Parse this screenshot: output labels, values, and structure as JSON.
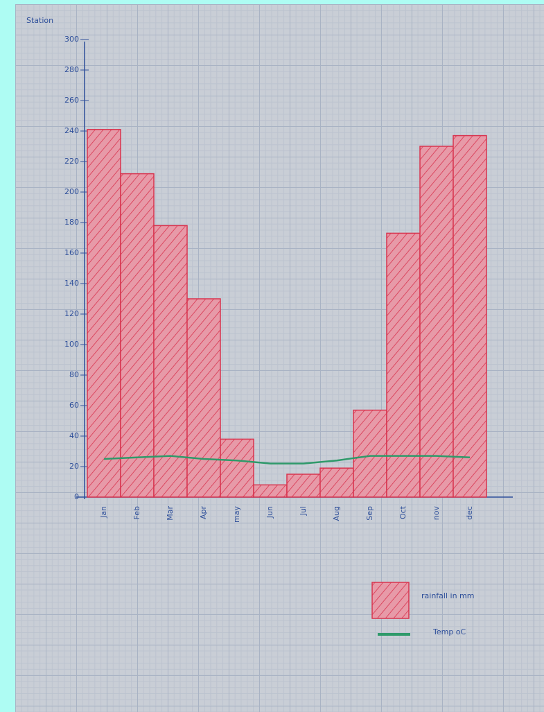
{
  "chart_data": {
    "type": "bar",
    "title": "Station",
    "categories": [
      "Jan",
      "Feb",
      "Mar",
      "Apr",
      "may",
      "Jun",
      "Jul",
      "Aug",
      "Sep",
      "Oct",
      "nov",
      "dec"
    ],
    "series": [
      {
        "name": "rainfall in mm",
        "color": "#d8344f",
        "values": [
          241,
          212,
          178,
          130,
          38,
          8,
          15,
          19,
          57,
          173,
          230,
          237
        ]
      },
      {
        "name": "Temp oC",
        "color": "#2f9a6a",
        "type": "line",
        "values": [
          25,
          26,
          27,
          25,
          24,
          22,
          22,
          24,
          27,
          27,
          27,
          26
        ]
      }
    ],
    "ylim": [
      0,
      300
    ],
    "yticks": [
      0,
      20,
      40,
      60,
      80,
      100,
      120,
      140,
      160,
      180,
      200,
      220,
      240,
      260,
      280,
      300
    ]
  }
}
